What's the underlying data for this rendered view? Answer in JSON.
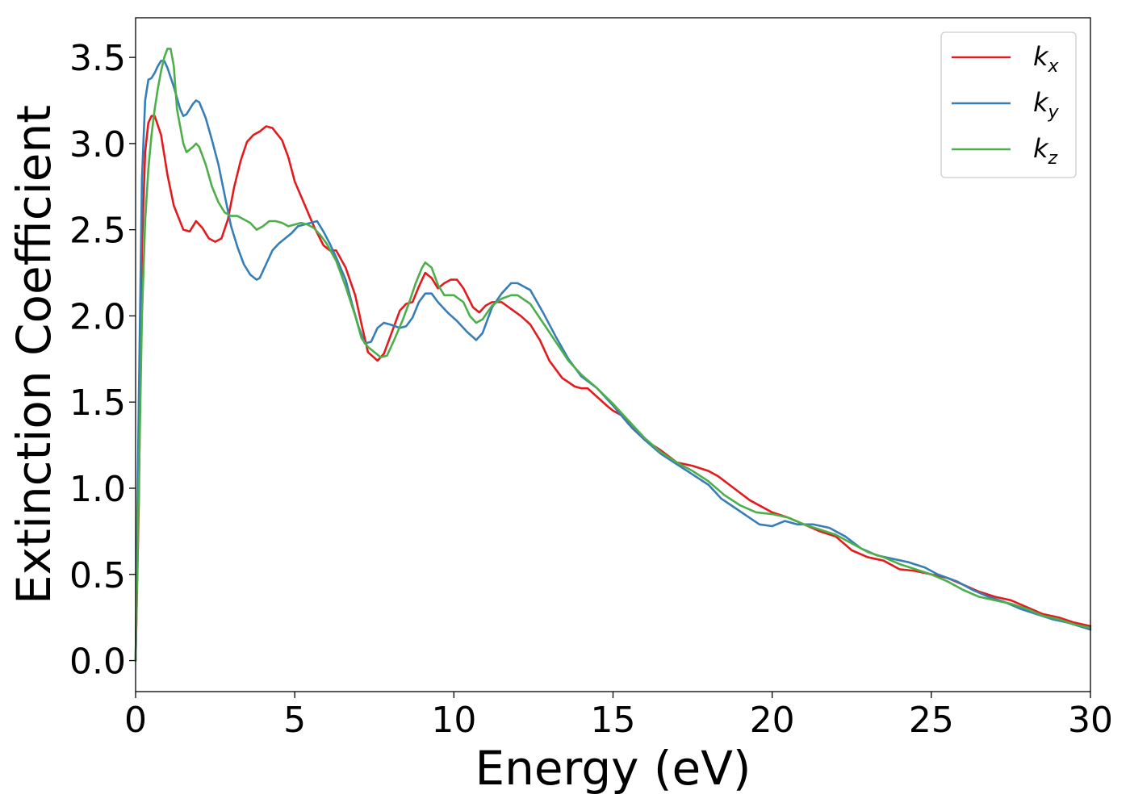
{
  "chart_data": {
    "type": "line",
    "title": "",
    "xlabel": "Energy (eV)",
    "ylabel": "Extinction Coefficient",
    "xlim": [
      0,
      30
    ],
    "ylim": [
      -0.18,
      3.73
    ],
    "xticks": [
      0,
      5,
      10,
      15,
      20,
      25,
      30
    ],
    "xtick_labels": [
      "0",
      "5",
      "10",
      "15",
      "20",
      "25",
      "30"
    ],
    "yticks": [
      0.0,
      0.5,
      1.0,
      1.5,
      2.0,
      2.5,
      3.0,
      3.5
    ],
    "ytick_labels": [
      "0.0",
      "0.5",
      "1.0",
      "1.5",
      "2.0",
      "2.5",
      "3.0",
      "3.5"
    ],
    "grid": false,
    "legend_position": "top-right",
    "series": [
      {
        "name": "kx",
        "label_base": "k",
        "label_sub": "x",
        "color": "#e41a1c",
        "points": [
          [
            0,
            0.0
          ],
          [
            0.1,
            0.9
          ],
          [
            0.2,
            2.4
          ],
          [
            0.3,
            2.95
          ],
          [
            0.4,
            3.12
          ],
          [
            0.5,
            3.16
          ],
          [
            0.6,
            3.16
          ],
          [
            0.8,
            3.05
          ],
          [
            1.0,
            2.82
          ],
          [
            1.2,
            2.64
          ],
          [
            1.5,
            2.5
          ],
          [
            1.7,
            2.49
          ],
          [
            1.9,
            2.55
          ],
          [
            2.1,
            2.51
          ],
          [
            2.3,
            2.45
          ],
          [
            2.5,
            2.43
          ],
          [
            2.7,
            2.45
          ],
          [
            2.9,
            2.56
          ],
          [
            3.1,
            2.75
          ],
          [
            3.3,
            2.9
          ],
          [
            3.5,
            3.01
          ],
          [
            3.7,
            3.05
          ],
          [
            3.9,
            3.07
          ],
          [
            4.1,
            3.1
          ],
          [
            4.3,
            3.09
          ],
          [
            4.6,
            3.02
          ],
          [
            4.8,
            2.92
          ],
          [
            5.0,
            2.78
          ],
          [
            5.3,
            2.65
          ],
          [
            5.6,
            2.52
          ],
          [
            5.9,
            2.41
          ],
          [
            6.1,
            2.38
          ],
          [
            6.3,
            2.38
          ],
          [
            6.6,
            2.28
          ],
          [
            6.9,
            2.12
          ],
          [
            7.1,
            1.95
          ],
          [
            7.3,
            1.79
          ],
          [
            7.6,
            1.74
          ],
          [
            7.8,
            1.78
          ],
          [
            8.0,
            1.88
          ],
          [
            8.3,
            2.03
          ],
          [
            8.5,
            2.07
          ],
          [
            8.7,
            2.08
          ],
          [
            8.9,
            2.17
          ],
          [
            9.1,
            2.25
          ],
          [
            9.3,
            2.22
          ],
          [
            9.5,
            2.16
          ],
          [
            9.7,
            2.19
          ],
          [
            9.9,
            2.21
          ],
          [
            10.1,
            2.21
          ],
          [
            10.3,
            2.16
          ],
          [
            10.6,
            2.05
          ],
          [
            10.8,
            2.02
          ],
          [
            11.0,
            2.06
          ],
          [
            11.2,
            2.08
          ],
          [
            11.5,
            2.08
          ],
          [
            11.8,
            2.04
          ],
          [
            12.1,
            2.0
          ],
          [
            12.4,
            1.95
          ],
          [
            12.7,
            1.86
          ],
          [
            13.0,
            1.74
          ],
          [
            13.4,
            1.64
          ],
          [
            13.8,
            1.59
          ],
          [
            14.0,
            1.58
          ],
          [
            14.2,
            1.58
          ],
          [
            14.5,
            1.53
          ],
          [
            14.8,
            1.48
          ],
          [
            15.0,
            1.45
          ],
          [
            15.3,
            1.42
          ],
          [
            15.6,
            1.35
          ],
          [
            16.0,
            1.28
          ],
          [
            16.5,
            1.22
          ],
          [
            17.0,
            1.15
          ],
          [
            17.5,
            1.13
          ],
          [
            18.0,
            1.1
          ],
          [
            18.3,
            1.07
          ],
          [
            18.8,
            1.0
          ],
          [
            19.3,
            0.93
          ],
          [
            20.0,
            0.86
          ],
          [
            20.5,
            0.83
          ],
          [
            21.0,
            0.79
          ],
          [
            21.5,
            0.75
          ],
          [
            22.0,
            0.72
          ],
          [
            22.5,
            0.64
          ],
          [
            23.0,
            0.6
          ],
          [
            23.5,
            0.58
          ],
          [
            24.0,
            0.53
          ],
          [
            24.5,
            0.52
          ],
          [
            25.0,
            0.5
          ],
          [
            25.5,
            0.48
          ],
          [
            26.0,
            0.44
          ],
          [
            26.5,
            0.4
          ],
          [
            27.0,
            0.37
          ],
          [
            27.5,
            0.35
          ],
          [
            28.0,
            0.31
          ],
          [
            28.5,
            0.27
          ],
          [
            29.0,
            0.25
          ],
          [
            29.5,
            0.22
          ],
          [
            30.0,
            0.2
          ]
        ]
      },
      {
        "name": "ky",
        "label_base": "k",
        "label_sub": "y",
        "color": "#377eb8",
        "points": [
          [
            0,
            0.0
          ],
          [
            0.1,
            1.5
          ],
          [
            0.2,
            2.8
          ],
          [
            0.3,
            3.25
          ],
          [
            0.4,
            3.37
          ],
          [
            0.5,
            3.38
          ],
          [
            0.6,
            3.41
          ],
          [
            0.7,
            3.45
          ],
          [
            0.8,
            3.48
          ],
          [
            0.9,
            3.48
          ],
          [
            1.0,
            3.44
          ],
          [
            1.2,
            3.33
          ],
          [
            1.4,
            3.2
          ],
          [
            1.5,
            3.16
          ],
          [
            1.6,
            3.17
          ],
          [
            1.8,
            3.23
          ],
          [
            1.9,
            3.25
          ],
          [
            2.0,
            3.24
          ],
          [
            2.2,
            3.15
          ],
          [
            2.4,
            3.02
          ],
          [
            2.6,
            2.88
          ],
          [
            2.8,
            2.7
          ],
          [
            3.0,
            2.52
          ],
          [
            3.2,
            2.4
          ],
          [
            3.4,
            2.3
          ],
          [
            3.6,
            2.24
          ],
          [
            3.8,
            2.21
          ],
          [
            3.9,
            2.22
          ],
          [
            4.1,
            2.3
          ],
          [
            4.3,
            2.38
          ],
          [
            4.5,
            2.42
          ],
          [
            4.7,
            2.45
          ],
          [
            4.9,
            2.48
          ],
          [
            5.1,
            2.52
          ],
          [
            5.3,
            2.53
          ],
          [
            5.5,
            2.54
          ],
          [
            5.7,
            2.55
          ],
          [
            5.9,
            2.49
          ],
          [
            6.1,
            2.42
          ],
          [
            6.3,
            2.34
          ],
          [
            6.6,
            2.21
          ],
          [
            6.8,
            2.07
          ],
          [
            7.0,
            1.94
          ],
          [
            7.2,
            1.84
          ],
          [
            7.4,
            1.85
          ],
          [
            7.6,
            1.93
          ],
          [
            7.8,
            1.96
          ],
          [
            8.0,
            1.95
          ],
          [
            8.3,
            1.93
          ],
          [
            8.5,
            1.94
          ],
          [
            8.7,
            1.99
          ],
          [
            8.9,
            2.08
          ],
          [
            9.1,
            2.13
          ],
          [
            9.3,
            2.13
          ],
          [
            9.5,
            2.08
          ],
          [
            9.8,
            2.02
          ],
          [
            10.1,
            1.97
          ],
          [
            10.4,
            1.91
          ],
          [
            10.7,
            1.86
          ],
          [
            10.9,
            1.9
          ],
          [
            11.2,
            2.05
          ],
          [
            11.5,
            2.13
          ],
          [
            11.8,
            2.19
          ],
          [
            12.0,
            2.19
          ],
          [
            12.4,
            2.15
          ],
          [
            12.8,
            2.02
          ],
          [
            13.2,
            1.88
          ],
          [
            13.6,
            1.75
          ],
          [
            14.0,
            1.65
          ],
          [
            14.5,
            1.58
          ],
          [
            15.0,
            1.48
          ],
          [
            15.5,
            1.37
          ],
          [
            16.0,
            1.28
          ],
          [
            16.5,
            1.2
          ],
          [
            17.0,
            1.14
          ],
          [
            17.5,
            1.08
          ],
          [
            18.0,
            1.02
          ],
          [
            18.4,
            0.94
          ],
          [
            18.8,
            0.89
          ],
          [
            19.2,
            0.84
          ],
          [
            19.6,
            0.79
          ],
          [
            20.0,
            0.78
          ],
          [
            20.4,
            0.81
          ],
          [
            20.8,
            0.79
          ],
          [
            21.3,
            0.79
          ],
          [
            21.8,
            0.77
          ],
          [
            22.3,
            0.72
          ],
          [
            22.8,
            0.65
          ],
          [
            23.3,
            0.61
          ],
          [
            23.8,
            0.59
          ],
          [
            24.3,
            0.57
          ],
          [
            24.8,
            0.54
          ],
          [
            25.2,
            0.5
          ],
          [
            25.8,
            0.46
          ],
          [
            26.3,
            0.41
          ],
          [
            26.8,
            0.37
          ],
          [
            27.3,
            0.34
          ],
          [
            27.8,
            0.3
          ],
          [
            28.3,
            0.27
          ],
          [
            28.8,
            0.24
          ],
          [
            29.3,
            0.22
          ],
          [
            30.0,
            0.18
          ]
        ]
      },
      {
        "name": "kz",
        "label_base": "k",
        "label_sub": "z",
        "color": "#4daf4a",
        "points": [
          [
            0,
            0.0
          ],
          [
            0.1,
            1.0
          ],
          [
            0.2,
            2.0
          ],
          [
            0.3,
            2.55
          ],
          [
            0.4,
            2.85
          ],
          [
            0.5,
            3.05
          ],
          [
            0.6,
            3.2
          ],
          [
            0.7,
            3.32
          ],
          [
            0.8,
            3.42
          ],
          [
            0.9,
            3.5
          ],
          [
            1.0,
            3.55
          ],
          [
            1.1,
            3.55
          ],
          [
            1.2,
            3.45
          ],
          [
            1.3,
            3.2
          ],
          [
            1.5,
            3.0
          ],
          [
            1.6,
            2.95
          ],
          [
            1.8,
            2.98
          ],
          [
            1.9,
            3.0
          ],
          [
            2.0,
            2.98
          ],
          [
            2.2,
            2.88
          ],
          [
            2.4,
            2.75
          ],
          [
            2.6,
            2.66
          ],
          [
            2.8,
            2.6
          ],
          [
            3.0,
            2.58
          ],
          [
            3.2,
            2.58
          ],
          [
            3.4,
            2.56
          ],
          [
            3.6,
            2.54
          ],
          [
            3.8,
            2.5
          ],
          [
            4.0,
            2.52
          ],
          [
            4.2,
            2.55
          ],
          [
            4.4,
            2.55
          ],
          [
            4.6,
            2.54
          ],
          [
            4.8,
            2.52
          ],
          [
            5.0,
            2.53
          ],
          [
            5.2,
            2.54
          ],
          [
            5.4,
            2.53
          ],
          [
            5.6,
            2.51
          ],
          [
            5.8,
            2.47
          ],
          [
            6.0,
            2.42
          ],
          [
            6.3,
            2.32
          ],
          [
            6.6,
            2.17
          ],
          [
            6.9,
            2.0
          ],
          [
            7.1,
            1.87
          ],
          [
            7.3,
            1.82
          ],
          [
            7.5,
            1.79
          ],
          [
            7.7,
            1.76
          ],
          [
            7.9,
            1.77
          ],
          [
            8.1,
            1.85
          ],
          [
            8.4,
            1.98
          ],
          [
            8.6,
            2.08
          ],
          [
            8.8,
            2.19
          ],
          [
            9.0,
            2.28
          ],
          [
            9.1,
            2.31
          ],
          [
            9.3,
            2.28
          ],
          [
            9.5,
            2.18
          ],
          [
            9.7,
            2.12
          ],
          [
            10.0,
            2.12
          ],
          [
            10.3,
            2.08
          ],
          [
            10.5,
            2.0
          ],
          [
            10.7,
            1.96
          ],
          [
            10.9,
            1.98
          ],
          [
            11.2,
            2.06
          ],
          [
            11.5,
            2.1
          ],
          [
            11.8,
            2.12
          ],
          [
            12.0,
            2.12
          ],
          [
            12.4,
            2.07
          ],
          [
            12.8,
            1.96
          ],
          [
            13.2,
            1.85
          ],
          [
            13.6,
            1.74
          ],
          [
            14.0,
            1.66
          ],
          [
            14.5,
            1.58
          ],
          [
            15.0,
            1.49
          ],
          [
            15.5,
            1.39
          ],
          [
            16.0,
            1.29
          ],
          [
            16.5,
            1.21
          ],
          [
            17.0,
            1.15
          ],
          [
            17.5,
            1.1
          ],
          [
            18.0,
            1.04
          ],
          [
            18.5,
            0.96
          ],
          [
            19.0,
            0.9
          ],
          [
            19.5,
            0.86
          ],
          [
            20.0,
            0.85
          ],
          [
            20.5,
            0.83
          ],
          [
            21.0,
            0.79
          ],
          [
            21.5,
            0.76
          ],
          [
            22.0,
            0.73
          ],
          [
            22.5,
            0.68
          ],
          [
            23.0,
            0.63
          ],
          [
            23.5,
            0.6
          ],
          [
            24.0,
            0.56
          ],
          [
            24.5,
            0.53
          ],
          [
            25.0,
            0.5
          ],
          [
            25.5,
            0.46
          ],
          [
            26.0,
            0.41
          ],
          [
            26.5,
            0.37
          ],
          [
            27.0,
            0.35
          ],
          [
            27.5,
            0.33
          ],
          [
            28.0,
            0.3
          ],
          [
            28.5,
            0.26
          ],
          [
            29.0,
            0.24
          ],
          [
            29.5,
            0.21
          ],
          [
            30.0,
            0.19
          ]
        ]
      }
    ]
  }
}
